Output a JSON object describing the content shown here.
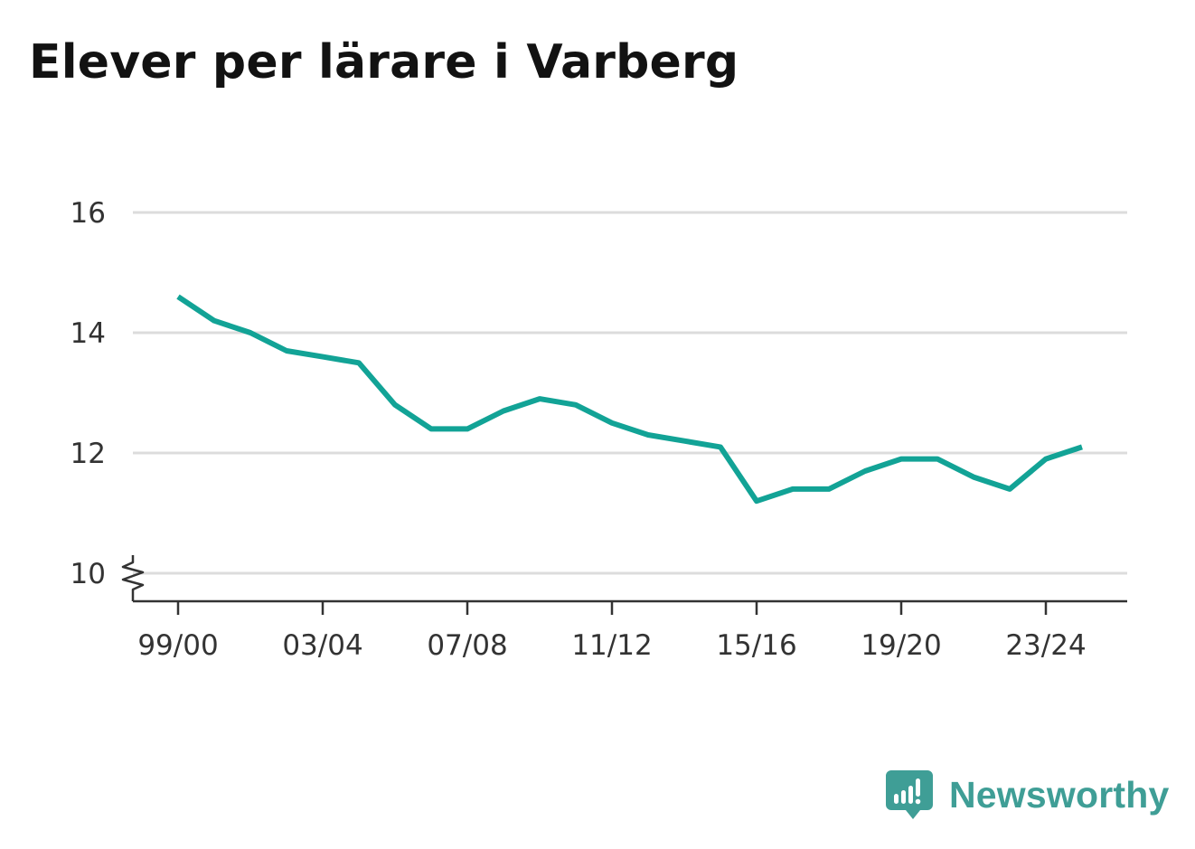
{
  "chart_data": {
    "type": "line",
    "title": "Elever per lärare i Varberg",
    "xlabel": "",
    "ylabel": "",
    "x": [
      "99/00",
      "00/01",
      "01/02",
      "02/03",
      "03/04",
      "04/05",
      "05/06",
      "06/07",
      "07/08",
      "08/09",
      "09/10",
      "10/11",
      "11/12",
      "12/13",
      "13/14",
      "14/15",
      "15/16",
      "16/17",
      "17/18",
      "18/19",
      "19/20",
      "20/21",
      "21/22",
      "22/23",
      "23/24",
      "24/25"
    ],
    "x_tick_labels": [
      "99/00",
      "03/04",
      "07/08",
      "11/12",
      "15/16",
      "19/20",
      "23/24"
    ],
    "series": [
      {
        "values": [
          14.6,
          14.2,
          14.0,
          13.7,
          13.6,
          13.5,
          12.8,
          12.4,
          12.4,
          12.7,
          12.9,
          12.8,
          12.5,
          12.3,
          12.2,
          12.1,
          11.2,
          11.4,
          11.4,
          11.7,
          11.9,
          11.9,
          11.6,
          11.4,
          11.9,
          12.1
        ],
        "color": "#12a396"
      }
    ],
    "y_ticks": [
      10,
      12,
      14,
      16
    ],
    "ylim": [
      10,
      16
    ],
    "y_axis_break": true,
    "grid": "horizontal"
  },
  "brand": {
    "name": "Newsworthy",
    "color": "#3f9e96",
    "icon": "newsworthy-logo-icon"
  }
}
